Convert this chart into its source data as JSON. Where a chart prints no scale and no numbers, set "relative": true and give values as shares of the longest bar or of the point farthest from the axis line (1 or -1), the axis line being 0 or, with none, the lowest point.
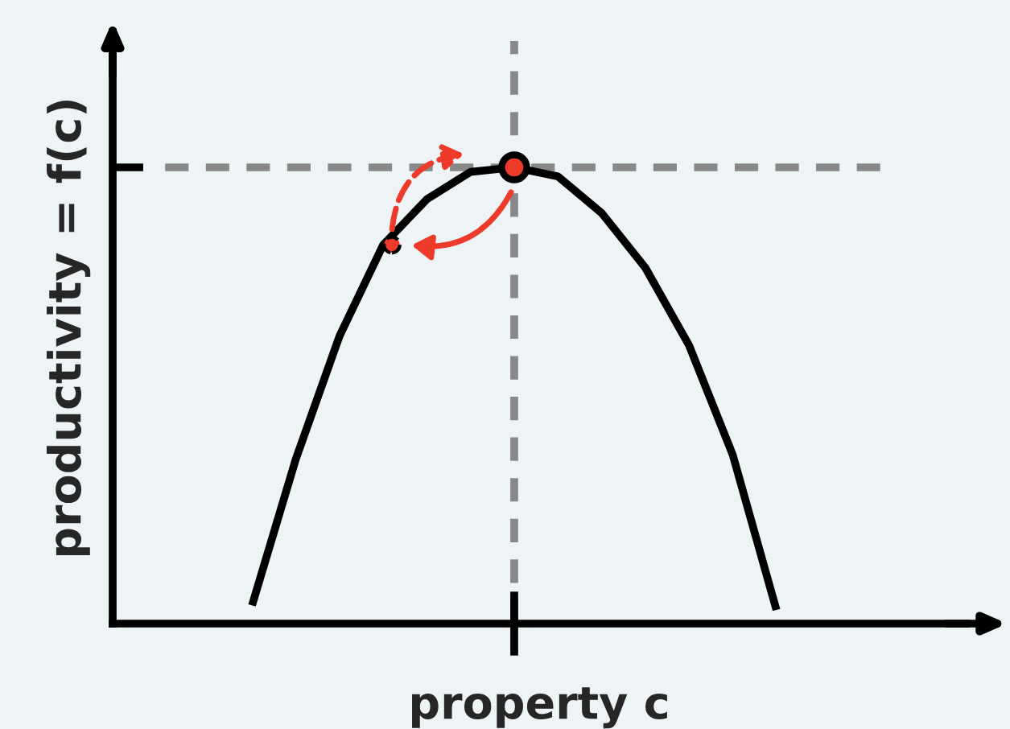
{
  "chart_data": {
    "type": "line",
    "relative": true,
    "xlabel": "property c",
    "ylabel": "productivity = f(c)",
    "categories": [
      null,
      null,
      null,
      null,
      null,
      null,
      null,
      null,
      null,
      null,
      null,
      null,
      null
    ],
    "series": [
      {
        "color": "#000000",
        "values": [
          0.04,
          0.36,
          0.63,
          0.83,
          0.93,
          0.99,
          1.0,
          0.98,
          0.9,
          0.78,
          0.61,
          0.37,
          0.03
        ]
      }
    ],
    "marker": "none",
    "line_style": "solid"
  }
}
